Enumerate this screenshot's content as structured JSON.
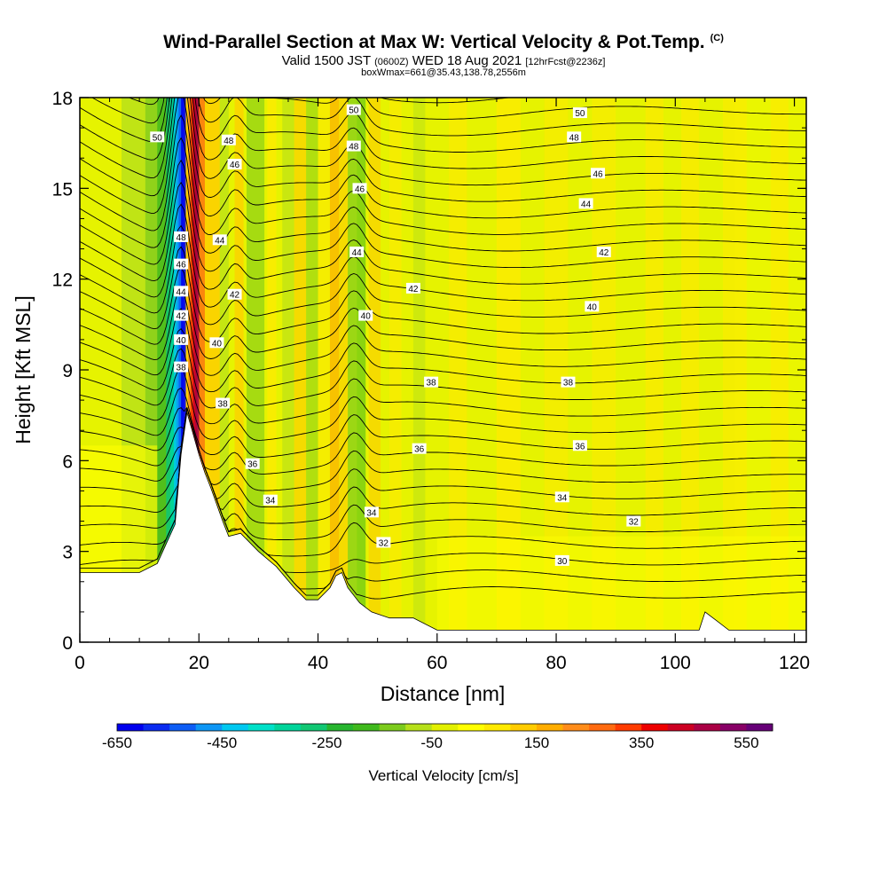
{
  "header": {
    "title": "Wind-Parallel Section at Max W: Vertical Velocity & Pot.Temp.",
    "copyright": "(C)",
    "valid_a": "Valid 1500 JST",
    "valid_b": "(0600Z)",
    "valid_c": "WED 18 Aug 2021",
    "valid_d": "[12hrFcst@2236z]",
    "box": "boxWmax=661@35.43,138.78,2556m"
  },
  "chart_data": {
    "type": "heatmap",
    "xlabel": "Distance [nm]",
    "ylabel": "Height [Kft MSL]",
    "xlim": [
      0,
      122
    ],
    "ylim": [
      0,
      18
    ],
    "x_ticks": [
      0,
      20,
      40,
      60,
      80,
      100,
      120
    ],
    "y_ticks": [
      0,
      3,
      6,
      9,
      12,
      15,
      18
    ],
    "colorbar": {
      "label": "Vertical Velocity [cm/s]",
      "tick_labels": [
        "-650",
        "-450",
        "-250",
        "-50",
        "150",
        "350",
        "550"
      ],
      "colors": [
        "#0000ee",
        "#0a2bf0",
        "#0d5df5",
        "#0d96f5",
        "#00c8f0",
        "#00e0c8",
        "#00d49a",
        "#11c773",
        "#27b52f",
        "#3fb91d",
        "#7ccb1d",
        "#b6e01a",
        "#e2f000",
        "#ffff00",
        "#ffea00",
        "#ffcc00",
        "#ffad00",
        "#ff8c1a",
        "#ff6a10",
        "#ff3b00",
        "#ee0000",
        "#cc0022",
        "#aa0044",
        "#880066",
        "#660077"
      ]
    },
    "terrain": [
      [
        0,
        2.3
      ],
      [
        10,
        2.3
      ],
      [
        13,
        2.6
      ],
      [
        16,
        3.9
      ],
      [
        17,
        6.2
      ],
      [
        18,
        7.6
      ],
      [
        20,
        6.2
      ],
      [
        21,
        5.6
      ],
      [
        22,
        5.1
      ],
      [
        24,
        4.0
      ],
      [
        25,
        3.5
      ],
      [
        27,
        3.6
      ],
      [
        30,
        3.0
      ],
      [
        33,
        2.5
      ],
      [
        36,
        1.8
      ],
      [
        38,
        1.4
      ],
      [
        40,
        1.4
      ],
      [
        42,
        1.8
      ],
      [
        43,
        2.2
      ],
      [
        44,
        2.3
      ],
      [
        45,
        1.8
      ],
      [
        47,
        1.3
      ],
      [
        49,
        1.0
      ],
      [
        52,
        0.8
      ],
      [
        56,
        0.8
      ],
      [
        60,
        0.4
      ],
      [
        104,
        0.4
      ],
      [
        105,
        1.0
      ],
      [
        107,
        0.7
      ],
      [
        109,
        0.4
      ],
      [
        122,
        0.4
      ]
    ],
    "theta_labels": [
      {
        "value": "50",
        "x": 13,
        "y": 16.7
      },
      {
        "value": "48",
        "x": 25,
        "y": 16.6
      },
      {
        "value": "46",
        "x": 26,
        "y": 15.8
      },
      {
        "value": "50",
        "x": 46,
        "y": 17.6
      },
      {
        "value": "48",
        "x": 46,
        "y": 16.4
      },
      {
        "value": "46",
        "x": 47,
        "y": 15.0
      },
      {
        "value": "50",
        "x": 84,
        "y": 17.5
      },
      {
        "value": "48",
        "x": 83,
        "y": 16.7
      },
      {
        "value": "46",
        "x": 87,
        "y": 15.5
      },
      {
        "value": "44",
        "x": 85,
        "y": 14.5
      },
      {
        "value": "48",
        "x": 17,
        "y": 13.4
      },
      {
        "value": "46",
        "x": 17,
        "y": 12.5
      },
      {
        "value": "44",
        "x": 17,
        "y": 11.6
      },
      {
        "value": "42",
        "x": 17,
        "y": 10.8
      },
      {
        "value": "40",
        "x": 17,
        "y": 10.0
      },
      {
        "value": "38",
        "x": 17,
        "y": 9.1
      },
      {
        "value": "44",
        "x": 23.5,
        "y": 13.3
      },
      {
        "value": "44",
        "x": 46.5,
        "y": 12.9
      },
      {
        "value": "42",
        "x": 26,
        "y": 11.5
      },
      {
        "value": "42",
        "x": 56,
        "y": 11.7
      },
      {
        "value": "42",
        "x": 88,
        "y": 12.9
      },
      {
        "value": "40",
        "x": 23,
        "y": 9.9
      },
      {
        "value": "40",
        "x": 48,
        "y": 10.8
      },
      {
        "value": "40",
        "x": 86,
        "y": 11.1
      },
      {
        "value": "38",
        "x": 24,
        "y": 7.9
      },
      {
        "value": "38",
        "x": 59,
        "y": 8.6
      },
      {
        "value": "38",
        "x": 82,
        "y": 8.6
      },
      {
        "value": "36",
        "x": 29,
        "y": 5.9
      },
      {
        "value": "36",
        "x": 57,
        "y": 6.4
      },
      {
        "value": "36",
        "x": 84,
        "y": 6.5
      },
      {
        "value": "34",
        "x": 32,
        "y": 4.7
      },
      {
        "value": "34",
        "x": 49,
        "y": 4.3
      },
      {
        "value": "34",
        "x": 81,
        "y": 4.8
      },
      {
        "value": "32",
        "x": 51,
        "y": 3.3
      },
      {
        "value": "32",
        "x": 93,
        "y": 4.0
      },
      {
        "value": "30",
        "x": 81,
        "y": 2.7
      }
    ]
  }
}
